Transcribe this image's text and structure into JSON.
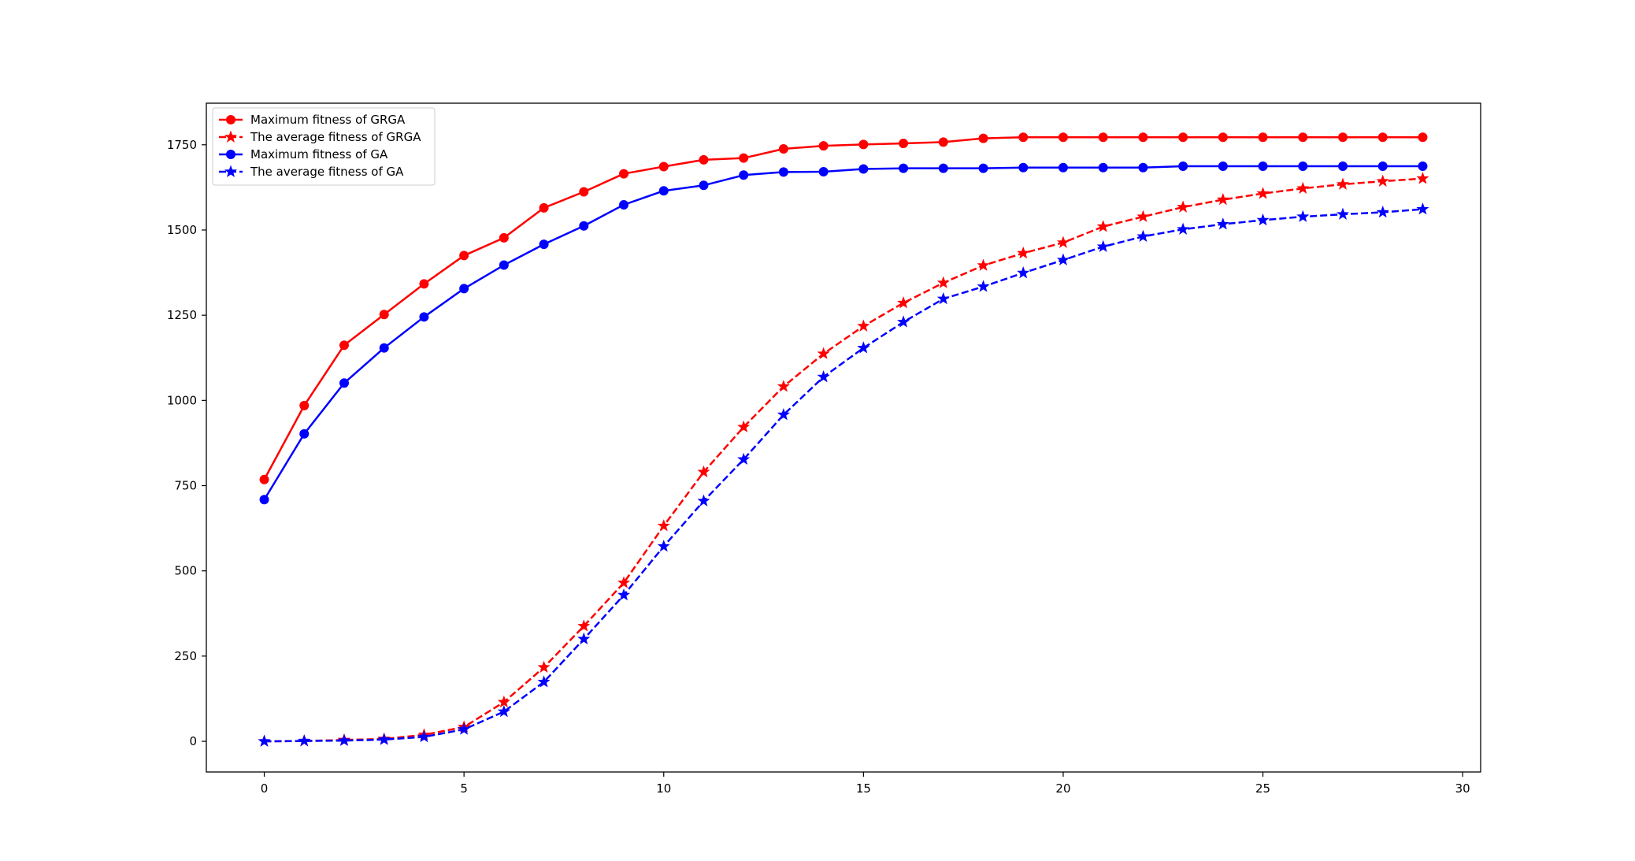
{
  "chart_data": {
    "type": "line",
    "title": "",
    "xlabel": "",
    "ylabel": "",
    "xlim": [
      -1.45,
      30.45
    ],
    "ylim": [
      -90,
      1872
    ],
    "xticks": [
      0,
      5,
      10,
      15,
      20,
      25,
      30
    ],
    "yticks": [
      0,
      250,
      500,
      750,
      1000,
      1250,
      1500,
      1750
    ],
    "grid": false,
    "legend_position": "top-left",
    "x": [
      0,
      1,
      2,
      3,
      4,
      5,
      6,
      7,
      8,
      9,
      10,
      11,
      12,
      13,
      14,
      15,
      16,
      17,
      18,
      19,
      20,
      21,
      22,
      23,
      24,
      25,
      26,
      27,
      28,
      29
    ],
    "series": [
      {
        "name": "Maximum fitness of GRGA",
        "color": "#ff0000",
        "line_style": "solid",
        "marker": "circle",
        "values": [
          768,
          985,
          1162,
          1252,
          1342,
          1425,
          1477,
          1565,
          1612,
          1665,
          1686,
          1706,
          1711,
          1738,
          1747,
          1751,
          1754,
          1758,
          1769,
          1772,
          1772,
          1772,
          1772,
          1772,
          1772,
          1772,
          1772,
          1772,
          1772,
          1772
        ]
      },
      {
        "name": "The average fitness of GRGA",
        "color": "#ff0000",
        "line_style": "dashed",
        "marker": "star",
        "values": [
          0,
          1,
          4,
          7,
          19,
          42,
          115,
          217,
          338,
          465,
          632,
          790,
          922,
          1041,
          1137,
          1218,
          1286,
          1345,
          1396,
          1432,
          1463,
          1510,
          1539,
          1567,
          1589,
          1607,
          1622,
          1634,
          1643,
          1651
        ]
      },
      {
        "name": "Maximum fitness of GA",
        "color": "#0000ff",
        "line_style": "solid",
        "marker": "circle",
        "values": [
          709,
          902,
          1051,
          1154,
          1245,
          1328,
          1397,
          1458,
          1512,
          1574,
          1615,
          1631,
          1661,
          1670,
          1671,
          1679,
          1681,
          1681,
          1681,
          1683,
          1683,
          1683,
          1683,
          1687,
          1687,
          1687,
          1687,
          1687,
          1687,
          1687
        ]
      },
      {
        "name": "The average fitness of GA",
        "color": "#0000ff",
        "line_style": "dashed",
        "marker": "star",
        "values": [
          0,
          1,
          2,
          5,
          13,
          35,
          87,
          174,
          300,
          429,
          572,
          705,
          827,
          958,
          1069,
          1154,
          1230,
          1298,
          1334,
          1374,
          1412,
          1451,
          1481,
          1502,
          1517,
          1529,
          1539,
          1546,
          1552,
          1561
        ]
      }
    ]
  }
}
